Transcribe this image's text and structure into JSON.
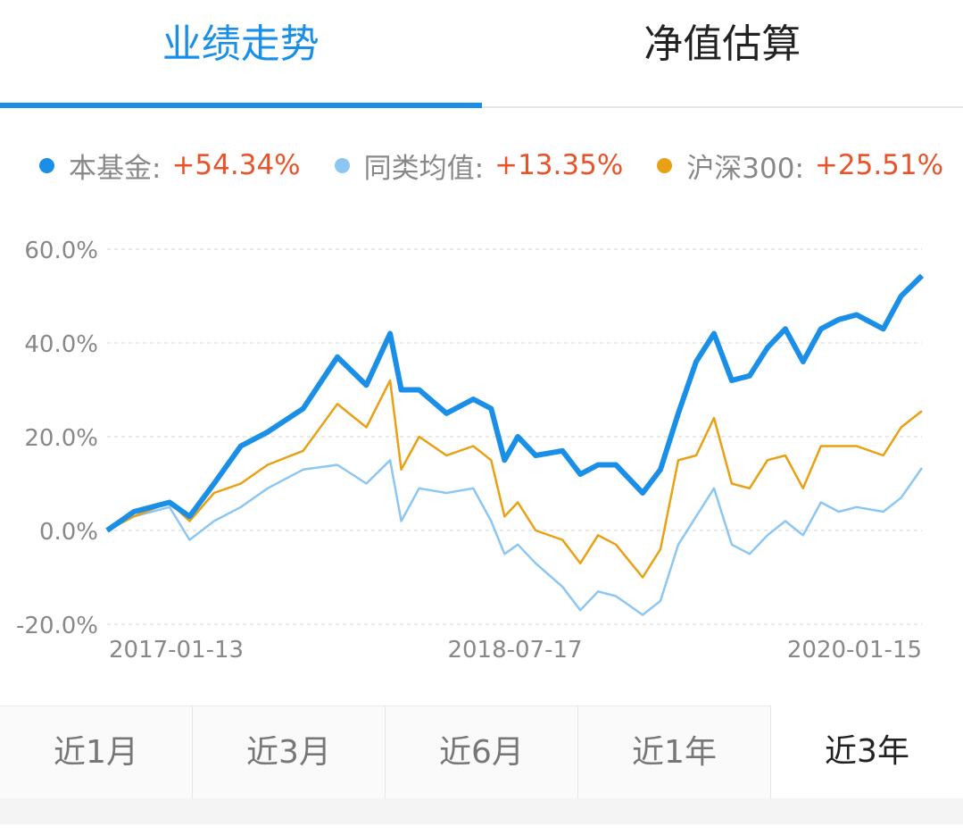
{
  "tabs": [
    {
      "label": "业绩走势",
      "active": true
    },
    {
      "label": "净值估算",
      "active": false
    }
  ],
  "legend": [
    {
      "name": "本基金:",
      "value": "+54.34%",
      "color": "#1a8fe8"
    },
    {
      "name": "同类均值:",
      "value": "+13.35%",
      "color": "#8cc6f3"
    },
    {
      "name": "沪深300:",
      "value": "+25.51%",
      "color": "#e9a013"
    }
  ],
  "value_color": "#e8532a",
  "periods": [
    {
      "label": "近1月"
    },
    {
      "label": "近3月"
    },
    {
      "label": "近6月"
    },
    {
      "label": "近1年"
    },
    {
      "label": "近3年",
      "active": true
    }
  ],
  "chart_data": {
    "type": "line",
    "ylim": [
      -20,
      60
    ],
    "yticks": [
      "60.0%",
      "40.0%",
      "20.0%",
      "0.0%",
      "-20.0%"
    ],
    "ytick_values": [
      60,
      40,
      20,
      0,
      -20
    ],
    "xticks": [
      "2017-01-13",
      "2018-07-17",
      "2020-01-15"
    ],
    "grid": true,
    "x": [
      "2017-01-13",
      "2017-02-18",
      "2017-04-07",
      "2017-05-04",
      "2017-06-06",
      "2017-07-12",
      "2017-08-17",
      "2017-10-04",
      "2017-11-19",
      "2017-12-28",
      "2018-01-29",
      "2018-02-13",
      "2018-03-09",
      "2018-04-15",
      "2018-05-21",
      "2018-06-14",
      "2018-07-02",
      "2018-07-20",
      "2018-08-13",
      "2018-09-18",
      "2018-10-12",
      "2018-11-05",
      "2018-11-29",
      "2019-01-04",
      "2019-01-28",
      "2019-02-21",
      "2019-03-17",
      "2019-04-10",
      "2019-05-04",
      "2019-05-28",
      "2019-06-21",
      "2019-07-15",
      "2019-08-08",
      "2019-09-01",
      "2019-09-25",
      "2019-10-19",
      "2019-11-24",
      "2019-12-18",
      "2020-01-15"
    ],
    "series": [
      {
        "name": "本基金",
        "color": "#1a8fe8",
        "values": [
          0,
          4,
          6,
          3,
          10,
          18,
          21,
          26,
          37,
          31,
          42,
          30,
          30,
          25,
          28,
          26,
          15,
          20,
          16,
          17,
          12,
          14,
          14,
          8,
          13,
          25,
          36,
          42,
          32,
          33,
          39,
          43,
          36,
          43,
          45,
          46,
          43,
          50,
          54.34
        ]
      },
      {
        "name": "同类均值",
        "color": "#8cc6f3",
        "values": [
          0,
          3,
          5,
          -2,
          2,
          5,
          9,
          13,
          14,
          10,
          15,
          2,
          9,
          8,
          9,
          2,
          -5,
          -3,
          -7,
          -12,
          -17,
          -13,
          -14,
          -18,
          -15,
          -3,
          3,
          9,
          -3,
          -5,
          -1,
          2,
          -1,
          6,
          4,
          5,
          4,
          7,
          13.35
        ]
      },
      {
        "name": "沪深300",
        "color": "#e9a013",
        "values": [
          0,
          3,
          6,
          2,
          8,
          10,
          14,
          17,
          27,
          22,
          32,
          13,
          20,
          16,
          18,
          15,
          3,
          6,
          0,
          -2,
          -7,
          -1,
          -3,
          -10,
          -4,
          15,
          16,
          24,
          10,
          9,
          15,
          16,
          9,
          18,
          18,
          18,
          16,
          22,
          25.51
        ]
      }
    ]
  }
}
